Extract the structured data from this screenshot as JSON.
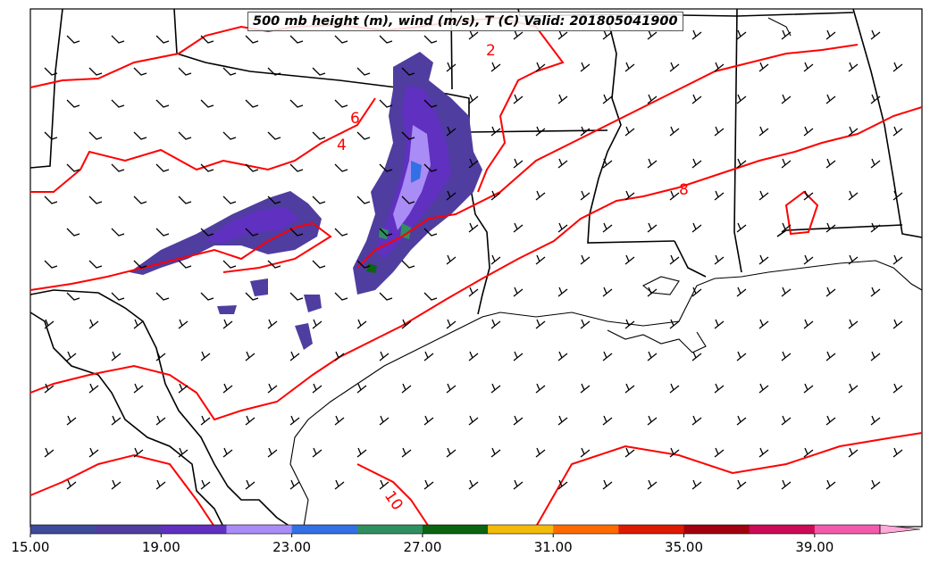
{
  "map": {
    "title": "500 mb height (m), wind (m/s), T (C) Valid: 201805041900",
    "contour_labels": [
      {
        "text": "2",
        "color": "#ff0000"
      },
      {
        "text": "4",
        "color": "#ff0000"
      },
      {
        "text": "6",
        "color": "#ff0000"
      },
      {
        "text": "8",
        "color": "#ff0000"
      },
      {
        "text": "10",
        "color": "#ff0000"
      }
    ],
    "colorbar": {
      "ticks": [
        "15.00",
        "19.00",
        "23.00",
        "27.00",
        "31.00",
        "35.00",
        "39.00"
      ],
      "colors": [
        "#3d4b9a",
        "#4f3da0",
        "#6030c0",
        "#a98cf5",
        "#3370e6",
        "#2e9060",
        "#0a6410",
        "#f2bb0a",
        "#ff6a00",
        "#dd1a00",
        "#a00010",
        "#cc0a55",
        "#f45aac",
        "#ffaad8"
      ]
    }
  }
}
